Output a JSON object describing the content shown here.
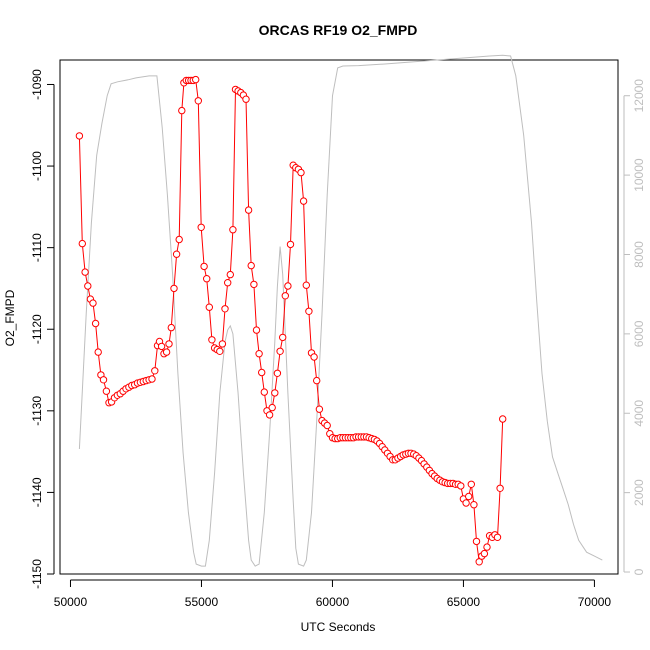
{
  "chart_data": {
    "type": "line",
    "title": "ORCAS RF19 O2_FMPD",
    "xlabel": "UTC Seconds",
    "ylabel": "O2_FMPD",
    "xlim": [
      49600,
      70900
    ],
    "ylim": [
      -1150,
      -1087
    ],
    "y2lim": [
      -50,
      12900
    ],
    "x_ticks": [
      50000,
      55000,
      60000,
      65000,
      70000
    ],
    "x_tick_labels": [
      "50000",
      "55000",
      "60000",
      "65000",
      "70000"
    ],
    "y_ticks": [
      -1150,
      -1140,
      -1130,
      -1120,
      -1110,
      -1100,
      -1090
    ],
    "y_tick_labels": [
      "-1150",
      "-1140",
      "-1130",
      "-1120",
      "-1110",
      "-1100",
      "-1090"
    ],
    "y2_ticks": [
      0,
      2000,
      4000,
      6000,
      8000,
      10000,
      12000
    ],
    "y2_tick_labels": [
      "0",
      "2000",
      "4000",
      "6000",
      "8000",
      "10000",
      "12000"
    ],
    "colors": {
      "o2_series": "#ff0000",
      "altitude_series": "#bebebe",
      "right_axis": "#bebebe",
      "axis": "#000000"
    },
    "series": [
      {
        "axis": "left",
        "style": "line+circles",
        "points": [
          [
            50340,
            -1096.3
          ],
          [
            50450,
            -1109.5
          ],
          [
            50560,
            -1113
          ],
          [
            50660,
            -1114.7
          ],
          [
            50760,
            -1116.3
          ],
          [
            50860,
            -1116.8
          ],
          [
            50960,
            -1119.3
          ],
          [
            51060,
            -1122.8
          ],
          [
            51160,
            -1125.6
          ],
          [
            51260,
            -1126.2
          ],
          [
            51370,
            -1127.6
          ],
          [
            51470,
            -1129
          ],
          [
            51570,
            -1128.9
          ],
          [
            51680,
            -1128.4
          ],
          [
            51790,
            -1128.1
          ],
          [
            51900,
            -1127.9
          ],
          [
            52010,
            -1127.6
          ],
          [
            52120,
            -1127.3
          ],
          [
            52230,
            -1127.1
          ],
          [
            52340,
            -1126.9
          ],
          [
            52450,
            -1126.8
          ],
          [
            52560,
            -1126.6
          ],
          [
            52670,
            -1126.5
          ],
          [
            52780,
            -1126.4
          ],
          [
            52890,
            -1126.3
          ],
          [
            53000,
            -1126.2
          ],
          [
            53110,
            -1126.1
          ],
          [
            53220,
            -1125.1
          ],
          [
            53320,
            -1122
          ],
          [
            53400,
            -1121.5
          ],
          [
            53480,
            -1122.1
          ],
          [
            53570,
            -1123
          ],
          [
            53670,
            -1122.8
          ],
          [
            53760,
            -1121.8
          ],
          [
            53850,
            -1119.8
          ],
          [
            53950,
            -1115
          ],
          [
            54050,
            -1110.8
          ],
          [
            54150,
            -1109
          ],
          [
            54250,
            -1093.2
          ],
          [
            54330,
            -1089.8
          ],
          [
            54420,
            -1089.5
          ],
          [
            54510,
            -1089.5
          ],
          [
            54600,
            -1089.5
          ],
          [
            54690,
            -1089.5
          ],
          [
            54780,
            -1089.4
          ],
          [
            54880,
            -1092
          ],
          [
            54990,
            -1107.5
          ],
          [
            55100,
            -1112.3
          ],
          [
            55200,
            -1113.8
          ],
          [
            55300,
            -1117.3
          ],
          [
            55400,
            -1121.3
          ],
          [
            55500,
            -1122.3
          ],
          [
            55600,
            -1122.5
          ],
          [
            55700,
            -1122.7
          ],
          [
            55800,
            -1121.8
          ],
          [
            55900,
            -1117.5
          ],
          [
            56000,
            -1114.3
          ],
          [
            56100,
            -1113.3
          ],
          [
            56200,
            -1107.8
          ],
          [
            56300,
            -1090.6
          ],
          [
            56400,
            -1090.8
          ],
          [
            56500,
            -1091
          ],
          [
            56600,
            -1091.3
          ],
          [
            56700,
            -1091.8
          ],
          [
            56800,
            -1105.4
          ],
          [
            56900,
            -1112.2
          ],
          [
            57000,
            -1114.5
          ],
          [
            57100,
            -1120.1
          ],
          [
            57200,
            -1123
          ],
          [
            57300,
            -1125.3
          ],
          [
            57400,
            -1127.7
          ],
          [
            57500,
            -1130
          ],
          [
            57600,
            -1130.5
          ],
          [
            57700,
            -1129.6
          ],
          [
            57800,
            -1127.8
          ],
          [
            57900,
            -1125.4
          ],
          [
            58000,
            -1122.7
          ],
          [
            58100,
            -1121
          ],
          [
            58200,
            -1115.9
          ],
          [
            58300,
            -1114.7
          ],
          [
            58400,
            -1109.6
          ],
          [
            58500,
            -1099.9
          ],
          [
            58600,
            -1100.2
          ],
          [
            58700,
            -1100.4
          ],
          [
            58800,
            -1100.8
          ],
          [
            58900,
            -1104.3
          ],
          [
            59000,
            -1114.6
          ],
          [
            59100,
            -1117.8
          ],
          [
            59200,
            -1122.9
          ],
          [
            59300,
            -1123.4
          ],
          [
            59400,
            -1126.3
          ],
          [
            59500,
            -1129.8
          ],
          [
            59600,
            -1131.2
          ],
          [
            59700,
            -1131.5
          ],
          [
            59800,
            -1131.8
          ],
          [
            59900,
            -1132.8
          ],
          [
            60000,
            -1133.3
          ],
          [
            60100,
            -1133.4
          ],
          [
            60200,
            -1133.4
          ],
          [
            60300,
            -1133.3
          ],
          [
            60400,
            -1133.3
          ],
          [
            60500,
            -1133.3
          ],
          [
            60600,
            -1133.3
          ],
          [
            60700,
            -1133.3
          ],
          [
            60800,
            -1133.3
          ],
          [
            60900,
            -1133.2
          ],
          [
            61000,
            -1133.2
          ],
          [
            61100,
            -1133.2
          ],
          [
            61200,
            -1133.2
          ],
          [
            61300,
            -1133.2
          ],
          [
            61400,
            -1133.3
          ],
          [
            61500,
            -1133.4
          ],
          [
            61600,
            -1133.5
          ],
          [
            61700,
            -1133.7
          ],
          [
            61800,
            -1134
          ],
          [
            61900,
            -1134.4
          ],
          [
            62000,
            -1134.8
          ],
          [
            62100,
            -1135.2
          ],
          [
            62200,
            -1135.6
          ],
          [
            62300,
            -1136
          ],
          [
            62400,
            -1136
          ],
          [
            62500,
            -1135.8
          ],
          [
            62600,
            -1135.6
          ],
          [
            62700,
            -1135.4
          ],
          [
            62800,
            -1135.3
          ],
          [
            62900,
            -1135.2
          ],
          [
            63000,
            -1135.2
          ],
          [
            63100,
            -1135.3
          ],
          [
            63200,
            -1135.5
          ],
          [
            63300,
            -1135.8
          ],
          [
            63400,
            -1136.1
          ],
          [
            63500,
            -1136.5
          ],
          [
            63600,
            -1136.9
          ],
          [
            63700,
            -1137.3
          ],
          [
            63800,
            -1137.7
          ],
          [
            63900,
            -1138
          ],
          [
            64000,
            -1138.3
          ],
          [
            64100,
            -1138.5
          ],
          [
            64200,
            -1138.7
          ],
          [
            64300,
            -1138.8
          ],
          [
            64400,
            -1138.9
          ],
          [
            64500,
            -1138.9
          ],
          [
            64600,
            -1138.9
          ],
          [
            64700,
            -1139
          ],
          [
            64800,
            -1139
          ],
          [
            64900,
            -1139.2
          ],
          [
            65000,
            -1140.8
          ],
          [
            65100,
            -1141.3
          ],
          [
            65200,
            -1140.5
          ],
          [
            65300,
            -1139
          ],
          [
            65400,
            -1141.5
          ],
          [
            65500,
            -1146
          ],
          [
            65600,
            -1148.5
          ],
          [
            65700,
            -1147.8
          ],
          [
            65800,
            -1147.5
          ],
          [
            65900,
            -1146.7
          ],
          [
            66000,
            -1145.3
          ],
          [
            66100,
            -1145.5
          ],
          [
            66200,
            -1145.2
          ],
          [
            66300,
            -1145.5
          ],
          [
            66400,
            -1139.5
          ],
          [
            66500,
            -1131
          ]
        ]
      },
      {
        "axis": "right",
        "style": "line",
        "points": [
          [
            50340,
            3100
          ],
          [
            50600,
            6500
          ],
          [
            50800,
            8800
          ],
          [
            51000,
            10500
          ],
          [
            51200,
            11300
          ],
          [
            51400,
            12000
          ],
          [
            51550,
            12300
          ],
          [
            51800,
            12350
          ],
          [
            52200,
            12400
          ],
          [
            52500,
            12450
          ],
          [
            53000,
            12500
          ],
          [
            53300,
            12500
          ],
          [
            53500,
            11200
          ],
          [
            53700,
            9500
          ],
          [
            53900,
            7500
          ],
          [
            54100,
            5000
          ],
          [
            54300,
            3000
          ],
          [
            54500,
            1500
          ],
          [
            54700,
            500
          ],
          [
            54800,
            200
          ],
          [
            55000,
            150
          ],
          [
            55150,
            150
          ],
          [
            55300,
            800
          ],
          [
            55500,
            2500
          ],
          [
            55700,
            4500
          ],
          [
            55900,
            5800
          ],
          [
            56000,
            6100
          ],
          [
            56100,
            6200
          ],
          [
            56200,
            6000
          ],
          [
            56400,
            4500
          ],
          [
            56600,
            2500
          ],
          [
            56800,
            800
          ],
          [
            56900,
            300
          ],
          [
            57050,
            150
          ],
          [
            57200,
            200
          ],
          [
            57400,
            1500
          ],
          [
            57600,
            3500
          ],
          [
            57800,
            5800
          ],
          [
            57900,
            7200
          ],
          [
            58000,
            8200
          ],
          [
            58100,
            7500
          ],
          [
            58300,
            4500
          ],
          [
            58500,
            1800
          ],
          [
            58600,
            600
          ],
          [
            58700,
            200
          ],
          [
            58900,
            150
          ],
          [
            59000,
            300
          ],
          [
            59200,
            1500
          ],
          [
            59400,
            3800
          ],
          [
            59600,
            6500
          ],
          [
            59800,
            9500
          ],
          [
            60000,
            12000
          ],
          [
            60200,
            12700
          ],
          [
            60400,
            12750
          ],
          [
            61000,
            12760
          ],
          [
            62000,
            12800
          ],
          [
            63000,
            12850
          ],
          [
            64000,
            12900
          ],
          [
            65000,
            12950
          ],
          [
            66000,
            13000
          ],
          [
            66500,
            13020
          ],
          [
            66800,
            13000
          ],
          [
            67000,
            12500
          ],
          [
            67300,
            11000
          ],
          [
            67600,
            8800
          ],
          [
            67800,
            6800
          ],
          [
            68000,
            5000
          ],
          [
            68200,
            3800
          ],
          [
            68400,
            2900
          ],
          [
            68600,
            2500
          ],
          [
            68800,
            2100
          ],
          [
            69000,
            1700
          ],
          [
            69200,
            1200
          ],
          [
            69400,
            800
          ],
          [
            69700,
            500
          ],
          [
            70000,
            400
          ],
          [
            70300,
            300
          ]
        ]
      }
    ]
  }
}
